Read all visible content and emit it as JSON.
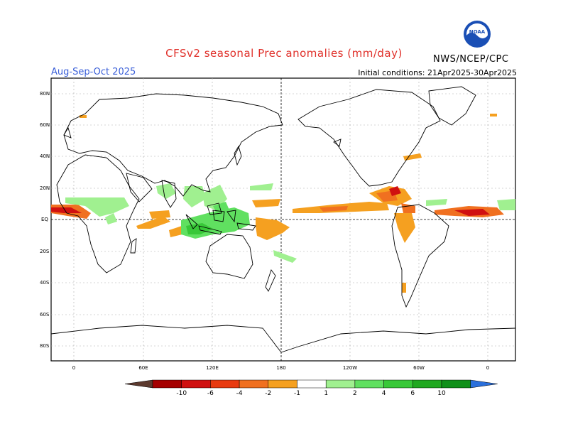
{
  "title": "CFSv2 seasonal Prec anomalies (mm/day)",
  "season": "Aug-Sep-Oct 2025",
  "initial_conditions": "Initial conditions: 21Apr2025-30Apr2025",
  "agency": "NWS/NCEP/CPC",
  "logo_text": "NOAA",
  "lat_labels": [
    "80N",
    "60N",
    "40N",
    "20N",
    "EQ",
    "20S",
    "40S",
    "60S",
    "80S"
  ],
  "lon_labels": [
    "0",
    "60E",
    "120E",
    "180",
    "120W",
    "60W",
    "0"
  ],
  "colorbar": {
    "labels": [
      "-10",
      "-6",
      "-4",
      "-2",
      "-1",
      "1",
      "2",
      "4",
      "6",
      "10"
    ],
    "colors": [
      "#5c3a2e",
      "#a50000",
      "#d01010",
      "#e83a10",
      "#f07020",
      "#f5a020",
      "#ffffff",
      "#a0f090",
      "#60e060",
      "#38c838",
      "#20a820",
      "#10901a",
      "#2a6fdb"
    ]
  },
  "colors": {
    "title": "#e0302a",
    "season": "#3a5fd8",
    "frame": "#000000",
    "grid": "#999999"
  }
}
